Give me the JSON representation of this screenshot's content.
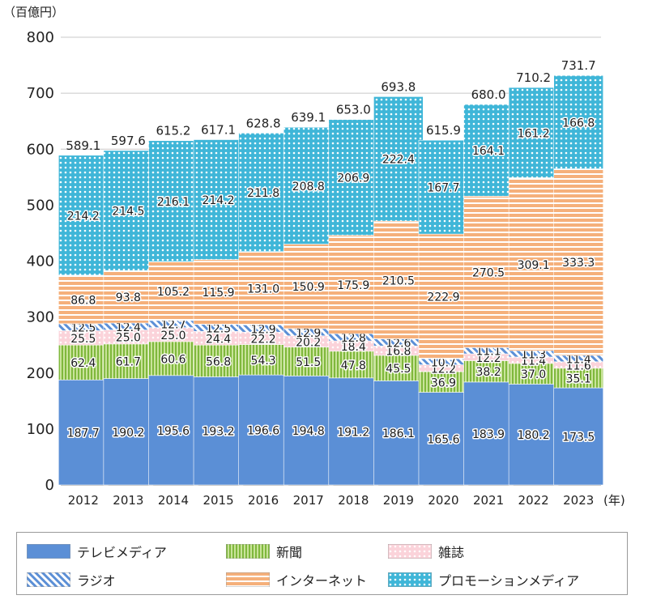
{
  "chart_data": {
    "type": "bar",
    "stacked": true,
    "unit_label": "（百億円）",
    "x_suffix": "(年)",
    "categories": [
      "2012",
      "2013",
      "2014",
      "2015",
      "2016",
      "2017",
      "2018",
      "2019",
      "2020",
      "2021",
      "2022",
      "2023"
    ],
    "ylim": [
      0,
      800
    ],
    "yticks": [
      0,
      100,
      200,
      300,
      400,
      500,
      600,
      700,
      800
    ],
    "grid": true,
    "legend_position": "bottom",
    "series": [
      {
        "name": "テレビメディア",
        "key": "tv",
        "color": "#5b8fd6",
        "values": [
          187.7,
          190.2,
          195.6,
          193.2,
          196.6,
          194.8,
          191.2,
          186.1,
          165.6,
          183.9,
          180.2,
          173.5
        ]
      },
      {
        "name": "新聞",
        "key": "newspaper",
        "color": "#9ccb5a",
        "values": [
          62.4,
          61.7,
          60.6,
          56.8,
          54.3,
          51.5,
          47.8,
          45.5,
          36.9,
          38.2,
          37.0,
          35.1
        ]
      },
      {
        "name": "雑誌",
        "key": "magazine",
        "color": "#f3a6b4",
        "values": [
          25.5,
          25.0,
          25.0,
          24.4,
          22.2,
          20.2,
          18.4,
          16.8,
          12.2,
          12.2,
          11.4,
          11.6
        ]
      },
      {
        "name": "ラジオ",
        "key": "radio",
        "color": "#5b8fd6",
        "values": [
          12.5,
          12.4,
          12.7,
          12.5,
          12.9,
          12.9,
          12.8,
          12.6,
          10.7,
          11.1,
          11.3,
          11.4
        ]
      },
      {
        "name": "インターネット",
        "key": "internet",
        "color": "#f5b07b",
        "values": [
          86.8,
          93.8,
          105.2,
          115.9,
          131.0,
          150.9,
          175.9,
          210.5,
          222.9,
          270.5,
          309.1,
          333.3
        ]
      },
      {
        "name": "プロモーションメディア",
        "key": "promotion",
        "color": "#3fb6d8",
        "values": [
          214.2,
          214.5,
          216.1,
          214.2,
          211.8,
          208.8,
          206.9,
          222.4,
          167.7,
          164.1,
          161.2,
          166.8
        ]
      }
    ],
    "totals": [
      "589.1",
      "597.6",
      "615.2",
      "617.1",
      "628.8",
      "639.1",
      "653.0",
      "693.8",
      "615.9",
      "680.0",
      "710.2",
      "731.7"
    ]
  }
}
